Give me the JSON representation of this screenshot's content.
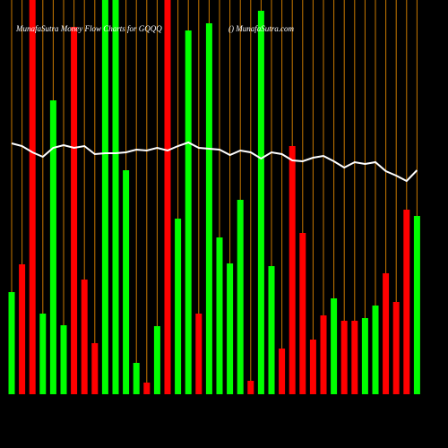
{
  "chart_data": {
    "type": "bar",
    "title": "MunafaSutra  Money Flow  Charts for GQQQ",
    "subtitle": "() MunafaSutra.com",
    "ylim": [
      0,
      440
    ],
    "values": [
      114,
      145,
      440,
      90,
      328,
      77,
      410,
      128,
      57,
      440,
      440,
      250,
      35,
      13,
      76,
      440,
      196,
      406,
      90,
      414,
      175,
      146,
      217,
      15,
      428,
      143,
      51,
      277,
      180,
      61,
      88,
      107,
      82,
      82,
      85,
      99,
      135,
      103,
      206,
      199
    ],
    "colors": [
      "#00ff00",
      "#ff0000",
      "#ff0000",
      "#00ff00",
      "#00ff00",
      "#00ff00",
      "#ff0000",
      "#ff0000",
      "#ff0000",
      "#00ff00",
      "#00ff00",
      "#00ff00",
      "#00ff00",
      "#ff0000",
      "#00ff00",
      "#ff0000",
      "#00ff00",
      "#00ff00",
      "#ff0000",
      "#00ff00",
      "#00ff00",
      "#00ff00",
      "#00ff00",
      "#ff0000",
      "#00ff00",
      "#00ff00",
      "#ff0000",
      "#ff0000",
      "#ff0000",
      "#ff0000",
      "#ff0000",
      "#00ff00",
      "#ff0000",
      "#ff0000",
      "#00ff00",
      "#00ff00",
      "#ff0000",
      "#ff0000",
      "#ff0000",
      "#00ff00"
    ],
    "line": {
      "color": "#ffffff",
      "values": [
        280,
        277,
        270,
        265,
        275,
        278,
        275,
        277,
        268,
        269,
        269,
        270,
        273,
        272,
        275,
        272,
        277,
        281,
        275,
        274,
        273,
        267,
        272,
        270,
        263,
        270,
        268,
        261,
        260,
        264,
        266,
        260,
        253,
        259,
        257,
        259,
        249,
        244,
        238,
        250
      ]
    }
  }
}
